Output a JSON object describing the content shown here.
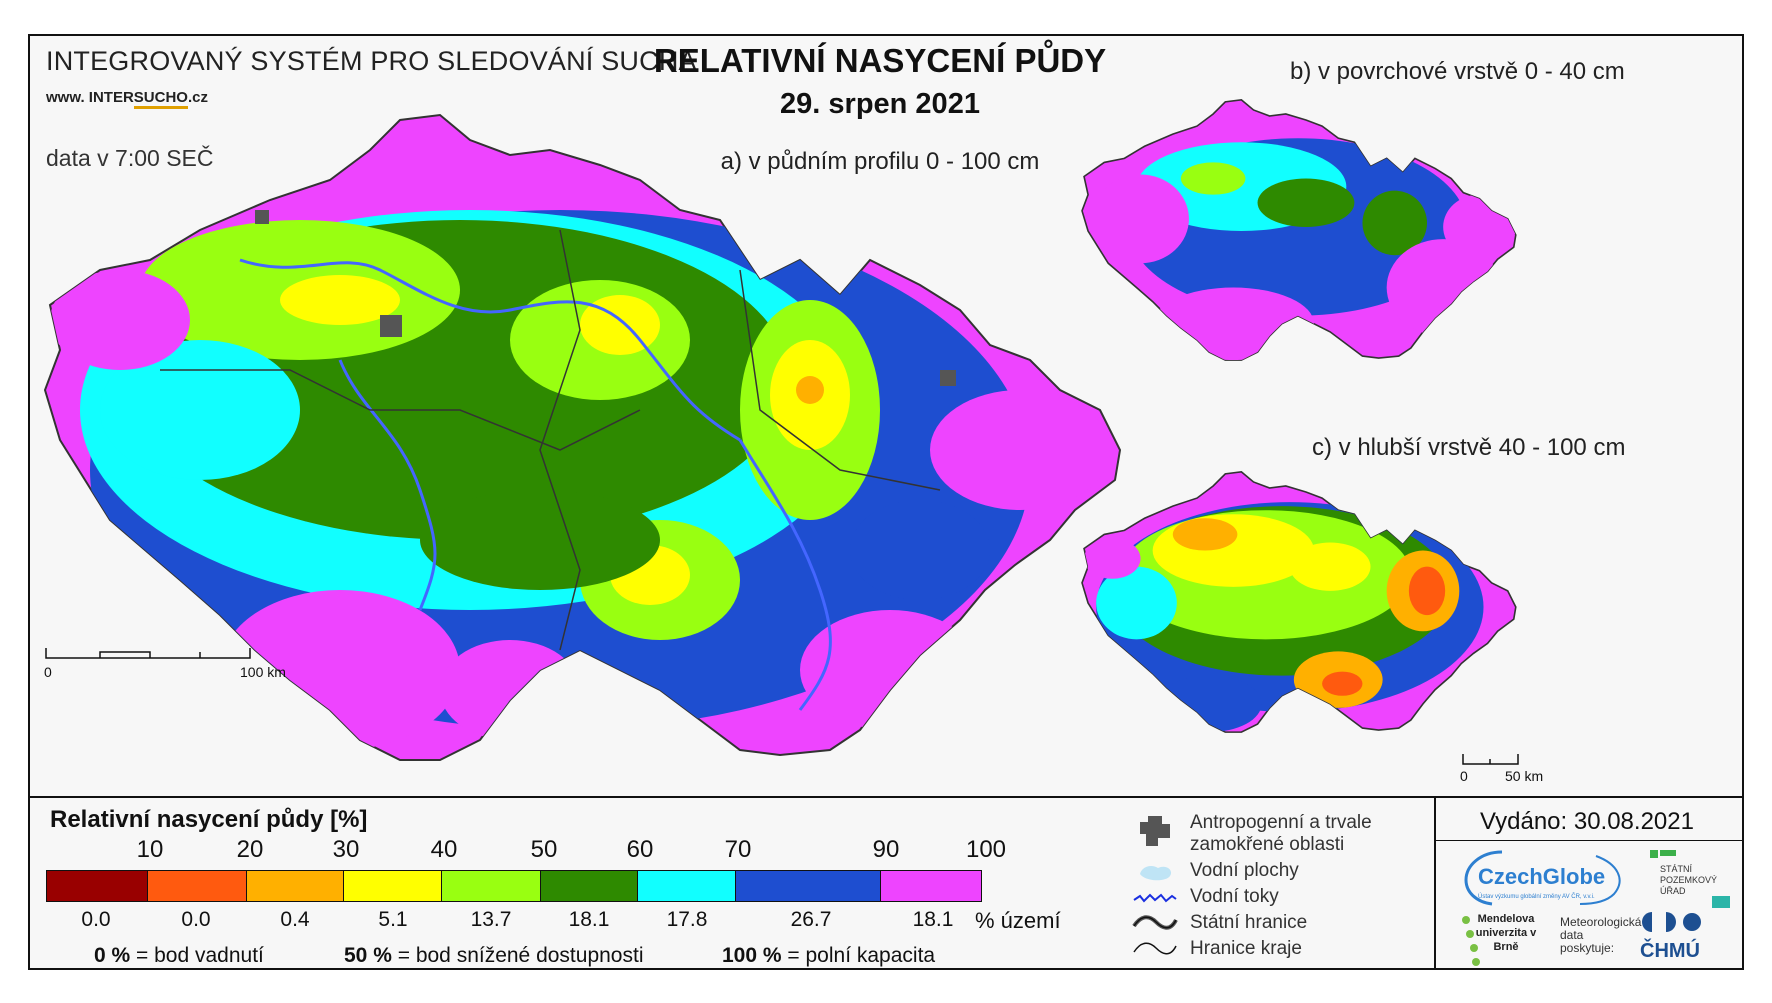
{
  "header": {
    "system_name": "INTEGROVANÝ SYSTÉM PRO SLEDOVÁNÍ SUCHA",
    "url_prefix": "www. INTER",
    "url_highlight": "SUCHO",
    "url_suffix": ".cz",
    "data_time": "data v 7:00 SEČ",
    "title": "RELATIVNÍ NASYCENÍ PŮDY",
    "date": "29. srpen 2021"
  },
  "maps": {
    "main_label": "a) v půdním profilu 0 - 100 cm",
    "surface_label": "b) v povrchové vrstvě 0 - 40 cm",
    "deep_label": "c) v hlubší vrstvě 40 - 100 cm",
    "main_scale": {
      "start": "0",
      "end": "100 km"
    },
    "small_scale": {
      "start": "0",
      "end": "50 km"
    }
  },
  "legend": {
    "title": "Relativní nasycení půdy [%]",
    "ticks": [
      "10",
      "20",
      "30",
      "40",
      "50",
      "60",
      "70",
      "90",
      "100"
    ],
    "classes": [
      {
        "color": "#990000",
        "area_pct": "0.0"
      },
      {
        "color": "#ff5a0f",
        "area_pct": "0.0"
      },
      {
        "color": "#ffb000",
        "area_pct": "0.4"
      },
      {
        "color": "#ffff00",
        "area_pct": "5.1"
      },
      {
        "color": "#99ff11",
        "area_pct": "13.7"
      },
      {
        "color": "#2e8a00",
        "area_pct": "18.1"
      },
      {
        "color": "#11ffff",
        "area_pct": "17.8"
      },
      {
        "color": "#1e4ed0",
        "area_pct": "26.7"
      },
      {
        "color": "#ee44ff",
        "area_pct": "18.1"
      }
    ],
    "area_unit": "% území",
    "notes": [
      {
        "value": "0 %",
        "text": "= bod vadnutí"
      },
      {
        "value": "50 %",
        "text": "= bod snížené dostupnosti"
      },
      {
        "value": "100 %",
        "text": "= polní kapacita"
      }
    ]
  },
  "symbols": {
    "anthropogenic": "Antropogenní a trvale zamokřené oblasti",
    "water_areas": "Vodní plochy",
    "streams": "Vodní toky",
    "state_border": "Státní hranice",
    "region_border": "Hranice kraje"
  },
  "issued": "Vydáno: 30.08.2021",
  "logos": {
    "czechglobe": "CzechGlobe",
    "czechglobe_sub": "Ústav výzkumu globální změny AV ČR, v.v.i.",
    "spu": "STÁTNÍ POZEMKOVÝ ÚŘAD",
    "mendelu": "Mendelova univerzita v Brně",
    "meteo": "Meteorologická data poskytuje:",
    "chmu": "ČHMÚ"
  }
}
